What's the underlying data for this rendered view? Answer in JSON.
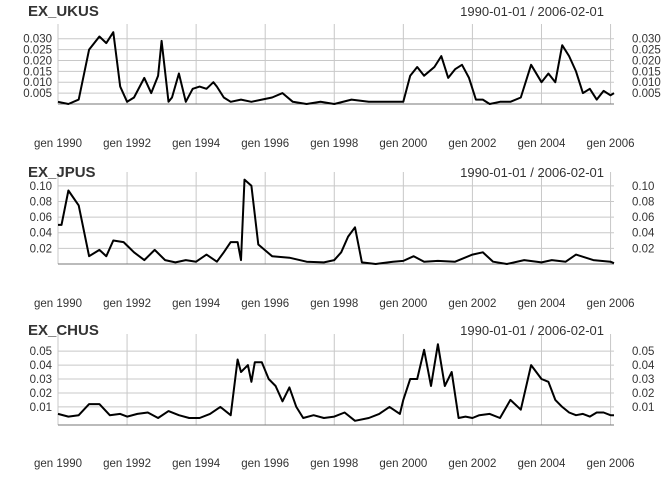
{
  "chart_data": [
    {
      "type": "line",
      "title": "EX_UKUS",
      "date_range": "1990-01-01 / 2006-02-01",
      "x_tick_labels": [
        "gen 1990",
        "gen 1992",
        "gen 1994",
        "gen 1996",
        "gen 1998",
        "gen 2000",
        "gen 2002",
        "gen 2004",
        "gen 2006"
      ],
      "y_ticks": [
        0.005,
        0.01,
        0.015,
        0.02,
        0.025,
        0.03
      ],
      "y_tick_labels": [
        "0.005",
        "0.010",
        "0.015",
        "0.020",
        "0.025",
        "0.030"
      ],
      "ylim": [
        0.0,
        0.034
      ],
      "grid": true,
      "x": [
        1990.0,
        1990.3,
        1990.6,
        1990.9,
        1991.2,
        1991.4,
        1991.6,
        1991.8,
        1992.0,
        1992.2,
        1992.5,
        1992.7,
        1992.9,
        1993.0,
        1993.2,
        1993.3,
        1993.5,
        1993.7,
        1993.9,
        1994.1,
        1994.3,
        1994.5,
        1994.6,
        1994.8,
        1995.0,
        1995.3,
        1995.6,
        1995.9,
        1996.2,
        1996.5,
        1996.8,
        1997.2,
        1997.6,
        1998.0,
        1998.5,
        1999.0,
        1999.5,
        2000.0,
        2000.2,
        2000.4,
        2000.6,
        2000.9,
        2001.1,
        2001.3,
        2001.5,
        2001.7,
        2001.9,
        2002.1,
        2002.3,
        2002.5,
        2002.8,
        2003.1,
        2003.4,
        2003.7,
        2004.0,
        2004.2,
        2004.4,
        2004.6,
        2004.8,
        2005.0,
        2005.2,
        2005.4,
        2005.6,
        2005.8,
        2006.0,
        2006.1
      ],
      "values": [
        0.001,
        0.0,
        0.002,
        0.025,
        0.031,
        0.028,
        0.033,
        0.008,
        0.001,
        0.003,
        0.012,
        0.005,
        0.013,
        0.029,
        0.001,
        0.003,
        0.014,
        0.001,
        0.007,
        0.008,
        0.007,
        0.01,
        0.008,
        0.003,
        0.001,
        0.002,
        0.001,
        0.002,
        0.003,
        0.005,
        0.001,
        0.0,
        0.001,
        0.0,
        0.002,
        0.001,
        0.001,
        0.001,
        0.013,
        0.017,
        0.013,
        0.017,
        0.022,
        0.012,
        0.016,
        0.018,
        0.012,
        0.002,
        0.002,
        0.0,
        0.001,
        0.001,
        0.003,
        0.018,
        0.01,
        0.014,
        0.01,
        0.027,
        0.022,
        0.015,
        0.005,
        0.007,
        0.002,
        0.006,
        0.004,
        0.005
      ]
    },
    {
      "type": "line",
      "title": "EX_JPUS",
      "date_range": "1990-01-01 / 2006-02-01",
      "x_tick_labels": [
        "gen 1990",
        "gen 1992",
        "gen 1994",
        "gen 1996",
        "gen 1998",
        "gen 2000",
        "gen 2002",
        "gen 2004",
        "gen 2006"
      ],
      "y_ticks": [
        0.02,
        0.04,
        0.06,
        0.08,
        0.1
      ],
      "y_tick_labels": [
        "0.02",
        "0.04",
        "0.06",
        "0.08",
        "0.10"
      ],
      "ylim": [
        0.0,
        0.11
      ],
      "grid": true,
      "x": [
        1990.0,
        1990.1,
        1990.3,
        1990.6,
        1990.9,
        1991.2,
        1991.4,
        1991.6,
        1991.9,
        1992.2,
        1992.5,
        1992.8,
        1993.1,
        1993.4,
        1993.7,
        1994.0,
        1994.3,
        1994.6,
        1994.8,
        1995.0,
        1995.2,
        1995.3,
        1995.4,
        1995.6,
        1995.8,
        1996.2,
        1996.7,
        1997.2,
        1997.7,
        1998.0,
        1998.2,
        1998.4,
        1998.6,
        1998.8,
        1999.2,
        1999.7,
        2000.0,
        2000.3,
        2000.6,
        2001.0,
        2001.5,
        2002.0,
        2002.3,
        2002.6,
        2003.0,
        2003.5,
        2004.0,
        2004.3,
        2004.7,
        2005.0,
        2005.5,
        2006.0,
        2006.1
      ],
      "values": [
        0.05,
        0.05,
        0.094,
        0.075,
        0.01,
        0.018,
        0.01,
        0.03,
        0.028,
        0.015,
        0.005,
        0.018,
        0.005,
        0.002,
        0.005,
        0.003,
        0.012,
        0.003,
        0.015,
        0.028,
        0.028,
        0.005,
        0.108,
        0.1,
        0.025,
        0.01,
        0.008,
        0.003,
        0.002,
        0.005,
        0.015,
        0.035,
        0.047,
        0.002,
        0.0,
        0.003,
        0.004,
        0.01,
        0.003,
        0.004,
        0.003,
        0.012,
        0.015,
        0.003,
        0.0,
        0.005,
        0.002,
        0.005,
        0.003,
        0.012,
        0.005,
        0.003,
        0.001
      ]
    },
    {
      "type": "line",
      "title": "EX_CHUS",
      "date_range": "1990-01-01 / 2006-02-01",
      "x_tick_labels": [
        "gen 1990",
        "gen 1992",
        "gen 1994",
        "gen 1996",
        "gen 1998",
        "gen 2000",
        "gen 2002",
        "gen 2004",
        "gen 2006"
      ],
      "y_ticks": [
        0.01,
        0.02,
        0.03,
        0.04,
        0.05
      ],
      "y_tick_labels": [
        "0.01",
        "0.02",
        "0.03",
        "0.04",
        "0.05"
      ],
      "ylim": [
        -0.003,
        0.058
      ],
      "grid": true,
      "x": [
        1990.0,
        1990.3,
        1990.6,
        1990.9,
        1991.2,
        1991.5,
        1991.8,
        1992.0,
        1992.3,
        1992.6,
        1992.9,
        1993.2,
        1993.5,
        1993.8,
        1994.1,
        1994.4,
        1994.7,
        1995.0,
        1995.2,
        1995.3,
        1995.5,
        1995.6,
        1995.7,
        1995.9,
        1996.1,
        1996.3,
        1996.5,
        1996.7,
        1996.9,
        1997.1,
        1997.4,
        1997.7,
        1998.0,
        1998.3,
        1998.6,
        1999.0,
        1999.3,
        1999.6,
        1999.9,
        2000.0,
        2000.2,
        2000.4,
        2000.6,
        2000.8,
        2001.0,
        2001.2,
        2001.4,
        2001.6,
        2001.8,
        2002.0,
        2002.2,
        2002.5,
        2002.8,
        2003.1,
        2003.4,
        2003.7,
        2004.0,
        2004.2,
        2004.4,
        2004.6,
        2004.8,
        2005.0,
        2005.2,
        2005.4,
        2005.6,
        2005.8,
        2006.0,
        2006.1
      ],
      "values": [
        0.005,
        0.003,
        0.004,
        0.012,
        0.012,
        0.004,
        0.005,
        0.003,
        0.005,
        0.006,
        0.002,
        0.007,
        0.004,
        0.002,
        0.002,
        0.005,
        0.01,
        0.004,
        0.044,
        0.035,
        0.04,
        0.028,
        0.042,
        0.042,
        0.03,
        0.025,
        0.014,
        0.024,
        0.01,
        0.002,
        0.004,
        0.002,
        0.003,
        0.006,
        0.0,
        0.002,
        0.005,
        0.01,
        0.005,
        0.015,
        0.03,
        0.03,
        0.051,
        0.025,
        0.055,
        0.025,
        0.035,
        0.002,
        0.003,
        0.002,
        0.004,
        0.005,
        0.002,
        0.015,
        0.008,
        0.04,
        0.03,
        0.028,
        0.015,
        0.01,
        0.006,
        0.004,
        0.005,
        0.003,
        0.006,
        0.006,
        0.004,
        0.004
      ]
    }
  ]
}
